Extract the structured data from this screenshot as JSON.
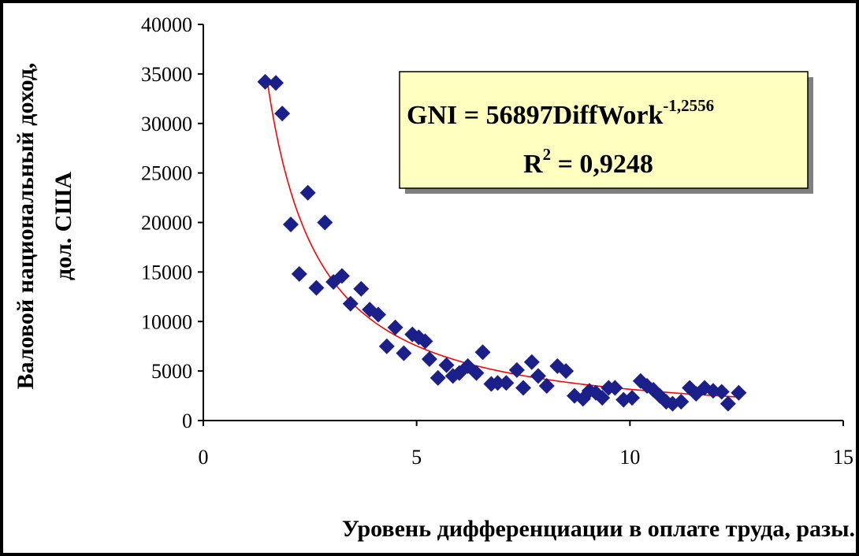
{
  "chart_data": {
    "type": "scatter",
    "title": "",
    "xlabel": "Уровень дифференциации в оплате труда, разы.",
    "ylabel": [
      "Валовой национальный доход,",
      "дол. США"
    ],
    "xlim": [
      0,
      15
    ],
    "ylim": [
      0,
      40000
    ],
    "xticks": [
      "0",
      "5",
      "10",
      "15"
    ],
    "yticks": [
      "0",
      "5000",
      "10000",
      "15000",
      "20000",
      "25000",
      "30000",
      "35000",
      "40000"
    ],
    "xtick_values": [
      0,
      5,
      10,
      15
    ],
    "ytick_values": [
      0,
      5000,
      10000,
      15000,
      20000,
      25000,
      30000,
      35000,
      40000
    ],
    "grid": false,
    "marker": "diamond",
    "colors": {
      "points": "#1b1f8a",
      "trendline": "#ff0000",
      "box_fill": "#ffffc0",
      "box_border": "#000000"
    },
    "series": [
      {
        "points": [
          [
            1.45,
            34200
          ],
          [
            1.7,
            34100
          ],
          [
            1.85,
            31000
          ],
          [
            2.05,
            19800
          ],
          [
            2.25,
            14800
          ],
          [
            2.45,
            23000
          ],
          [
            2.65,
            13400
          ],
          [
            2.85,
            20000
          ],
          [
            3.05,
            14000
          ],
          [
            3.25,
            14600
          ],
          [
            3.45,
            11800
          ],
          [
            3.7,
            13300
          ],
          [
            3.9,
            11200
          ],
          [
            4.1,
            10700
          ],
          [
            4.3,
            7500
          ],
          [
            4.5,
            9400
          ],
          [
            4.7,
            6800
          ],
          [
            4.9,
            8700
          ],
          [
            5.05,
            8400
          ],
          [
            5.2,
            8000
          ],
          [
            5.3,
            6200
          ],
          [
            5.5,
            4300
          ],
          [
            5.7,
            5600
          ],
          [
            5.85,
            4500
          ],
          [
            6.0,
            4800
          ],
          [
            6.2,
            5500
          ],
          [
            6.4,
            4800
          ],
          [
            6.55,
            6900
          ],
          [
            6.75,
            3700
          ],
          [
            6.9,
            3800
          ],
          [
            7.1,
            3800
          ],
          [
            7.35,
            5100
          ],
          [
            7.5,
            3300
          ],
          [
            7.7,
            5900
          ],
          [
            7.85,
            4500
          ],
          [
            8.05,
            3500
          ],
          [
            8.3,
            5500
          ],
          [
            8.5,
            5000
          ],
          [
            8.7,
            2500
          ],
          [
            8.9,
            2200
          ],
          [
            9.05,
            3000
          ],
          [
            9.2,
            2800
          ],
          [
            9.35,
            2300
          ],
          [
            9.5,
            3300
          ],
          [
            9.65,
            3300
          ],
          [
            9.85,
            2100
          ],
          [
            10.05,
            2300
          ],
          [
            10.25,
            4000
          ],
          [
            10.4,
            3500
          ],
          [
            10.55,
            3100
          ],
          [
            10.7,
            2500
          ],
          [
            10.85,
            1900
          ],
          [
            11.0,
            1700
          ],
          [
            11.2,
            1900
          ],
          [
            11.4,
            3300
          ],
          [
            11.55,
            2700
          ],
          [
            11.75,
            3300
          ],
          [
            11.95,
            3000
          ],
          [
            12.15,
            2900
          ],
          [
            12.3,
            1700
          ],
          [
            12.55,
            2800
          ]
        ]
      }
    ],
    "trendline": {
      "type": "power",
      "a": 56897,
      "b": -1.2556,
      "x_range": [
        1.5,
        12.5
      ],
      "equation_main": "GNI = 56897DiffWork",
      "equation_exp": "-1,2556",
      "r2_base": "R",
      "r2_sup": "2",
      "r2_value": " = 0,9248"
    }
  }
}
